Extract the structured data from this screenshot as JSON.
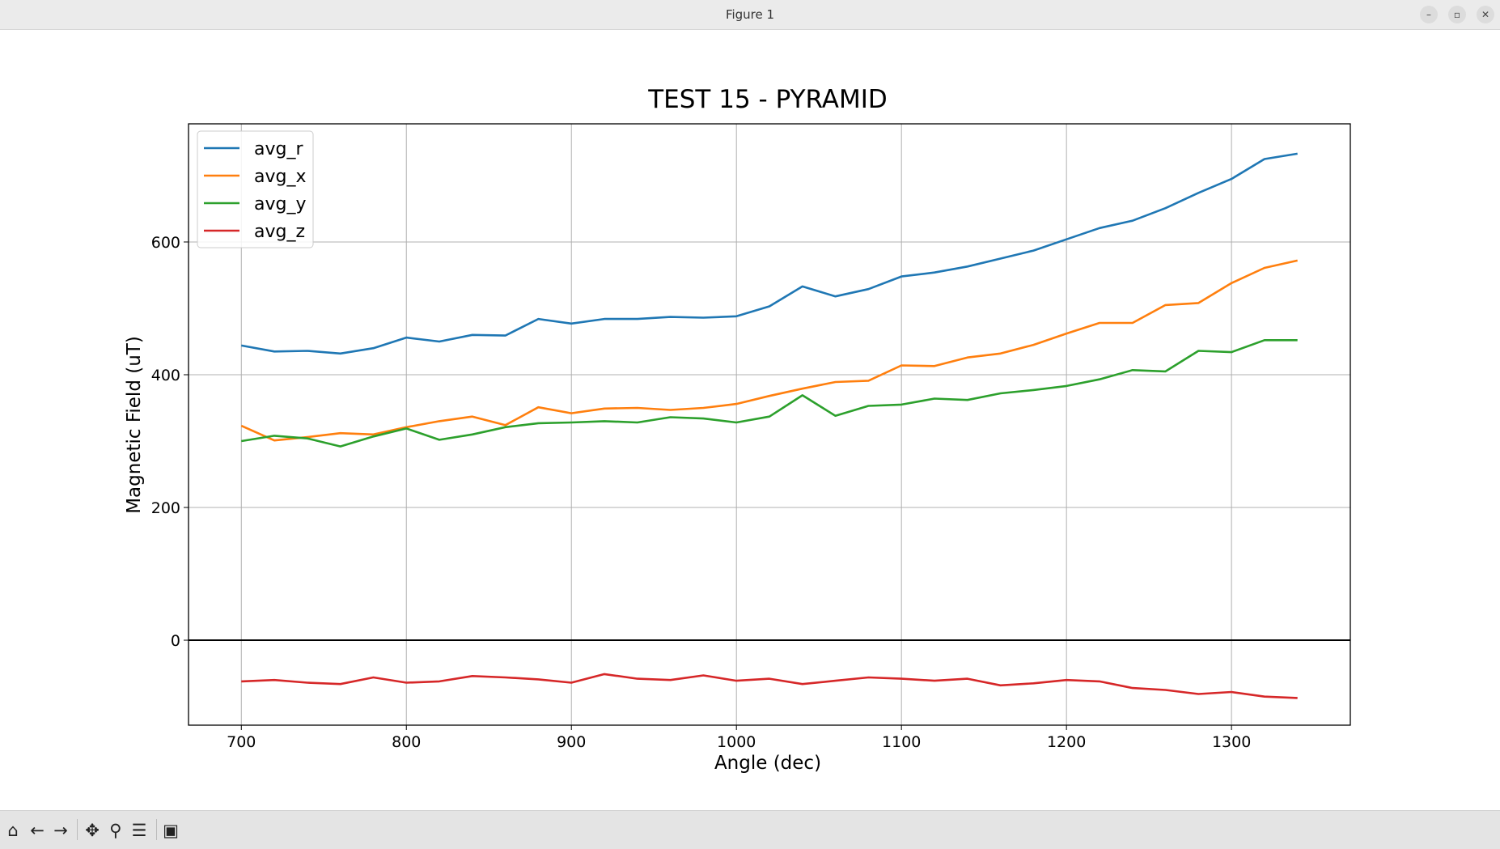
{
  "window": {
    "title": "Figure 1",
    "minimize_label": "–",
    "maximize_label": "▫",
    "close_label": "✕"
  },
  "toolbar": {
    "home_icon": "home-icon",
    "back_icon": "arrow-left-icon",
    "forward_icon": "arrow-right-icon",
    "pan_icon": "move-icon",
    "zoom_icon": "magnifier-icon",
    "configure_icon": "sliders-icon",
    "save_icon": "floppy-disk-icon"
  },
  "chart_data": {
    "type": "line",
    "title": "TEST 15 - PYRAMID",
    "xlabel": "Angle (dec)",
    "ylabel": "Magnetic Field (uT)",
    "xlim": [
      668,
      1372
    ],
    "ylim": [
      -128,
      778
    ],
    "xticks": [
      700,
      800,
      900,
      1000,
      1100,
      1200,
      1300
    ],
    "yticks": [
      0,
      200,
      400,
      600
    ],
    "grid": true,
    "zero_line": true,
    "legend_position": "top-left",
    "x": [
      700,
      720,
      740,
      760,
      780,
      800,
      820,
      840,
      860,
      880,
      900,
      920,
      940,
      960,
      980,
      1000,
      1020,
      1040,
      1060,
      1080,
      1100,
      1120,
      1140,
      1160,
      1180,
      1200,
      1220,
      1240,
      1260,
      1280,
      1300,
      1320,
      1340
    ],
    "series": [
      {
        "name": "avg_r",
        "color": "#1f77b4",
        "values": [
          444,
          435,
          436,
          432,
          440,
          456,
          450,
          460,
          459,
          484,
          477,
          484,
          484,
          487,
          486,
          488,
          503,
          533,
          518,
          529,
          548,
          554,
          563,
          575,
          587,
          604,
          621,
          632,
          651,
          674,
          695,
          725,
          733
        ]
      },
      {
        "name": "avg_x",
        "color": "#ff7f0e",
        "values": [
          323,
          301,
          306,
          312,
          310,
          321,
          330,
          337,
          324,
          351,
          342,
          349,
          350,
          347,
          350,
          356,
          368,
          379,
          389,
          391,
          414,
          413,
          426,
          432,
          445,
          462,
          478,
          478,
          505,
          508,
          538,
          561,
          572
        ]
      },
      {
        "name": "avg_y",
        "color": "#2ca02c",
        "values": [
          300,
          308,
          304,
          292,
          307,
          319,
          302,
          310,
          321,
          327,
          328,
          330,
          328,
          336,
          334,
          328,
          337,
          369,
          338,
          353,
          355,
          364,
          362,
          372,
          377,
          383,
          393,
          407,
          405,
          436,
          434,
          452,
          452
        ]
      },
      {
        "name": "avg_z",
        "color": "#d62728",
        "values": [
          -62,
          -60,
          -64,
          -66,
          -56,
          -64,
          -62,
          -54,
          -56,
          -59,
          -64,
          -51,
          -58,
          -60,
          -53,
          -61,
          -58,
          -66,
          -61,
          -56,
          -58,
          -61,
          -58,
          -68,
          -65,
          -60,
          -62,
          -72,
          -75,
          -81,
          -78,
          -85,
          -87
        ]
      }
    ]
  }
}
